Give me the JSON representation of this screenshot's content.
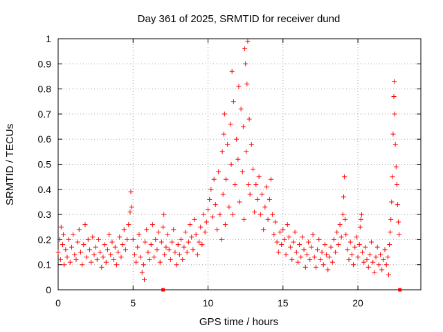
{
  "chart_data": {
    "type": "scatter",
    "title": "Day 361 of 2025, SRMTID for receiver dund",
    "xlabel": "GPS time / hours",
    "ylabel": "SRMTID / TECUs",
    "xlim": [
      0,
      24.2
    ],
    "ylim": [
      0,
      1
    ],
    "xticks": [
      0,
      5,
      10,
      15,
      20
    ],
    "yticks": [
      0,
      0.1,
      0.2,
      0.3,
      0.4,
      0.5,
      0.6,
      0.7,
      0.8,
      0.9,
      1
    ],
    "xtick_labels": [
      "0",
      "5",
      "10",
      "15",
      "20"
    ],
    "ytick_labels": [
      "0",
      "0.1",
      "0.2",
      "0.3",
      "0.4",
      "0.5",
      "0.6",
      "0.7",
      "0.8",
      "0.9",
      "1"
    ],
    "grid": true,
    "marker": "+",
    "color": "#ff0000",
    "series": [
      {
        "name": "SRMTID",
        "points": [
          [
            0.0,
            0.15
          ],
          [
            0.1,
            0.2
          ],
          [
            0.15,
            0.12
          ],
          [
            0.2,
            0.25
          ],
          [
            0.3,
            0.18
          ],
          [
            0.35,
            0.22
          ],
          [
            0.4,
            0.1
          ],
          [
            0.5,
            0.16
          ],
          [
            0.6,
            0.13
          ],
          [
            0.7,
            0.2
          ],
          [
            0.8,
            0.11
          ],
          [
            0.9,
            0.17
          ],
          [
            1.0,
            0.22
          ],
          [
            1.1,
            0.14
          ],
          [
            1.2,
            0.12
          ],
          [
            1.3,
            0.19
          ],
          [
            1.4,
            0.24
          ],
          [
            1.5,
            0.15
          ],
          [
            1.6,
            0.1
          ],
          [
            1.7,
            0.18
          ],
          [
            1.8,
            0.26
          ],
          [
            1.9,
            0.13
          ],
          [
            2.0,
            0.2
          ],
          [
            2.1,
            0.16
          ],
          [
            2.2,
            0.11
          ],
          [
            2.3,
            0.21
          ],
          [
            2.4,
            0.14
          ],
          [
            2.5,
            0.17
          ],
          [
            2.6,
            0.12
          ],
          [
            2.7,
            0.2
          ],
          [
            2.8,
            0.15
          ],
          [
            2.9,
            0.09
          ],
          [
            3.0,
            0.13
          ],
          [
            3.1,
            0.18
          ],
          [
            3.2,
            0.11
          ],
          [
            3.3,
            0.16
          ],
          [
            3.4,
            0.22
          ],
          [
            3.5,
            0.14
          ],
          [
            3.6,
            0.19
          ],
          [
            3.7,
            0.12
          ],
          [
            3.8,
            0.17
          ],
          [
            3.9,
            0.1
          ],
          [
            4.0,
            0.15
          ],
          [
            4.1,
            0.21
          ],
          [
            4.2,
            0.13
          ],
          [
            4.3,
            0.18
          ],
          [
            4.4,
            0.24
          ],
          [
            4.5,
            0.16
          ],
          [
            4.6,
            0.2
          ],
          [
            4.7,
            0.26
          ],
          [
            4.8,
            0.31
          ],
          [
            4.85,
            0.39
          ],
          [
            4.9,
            0.33
          ],
          [
            5.0,
            0.2
          ],
          [
            5.1,
            0.14
          ],
          [
            5.2,
            0.11
          ],
          [
            5.3,
            0.17
          ],
          [
            5.4,
            0.22
          ],
          [
            5.5,
            0.13
          ],
          [
            5.6,
            0.07
          ],
          [
            5.7,
            0.1
          ],
          [
            5.75,
            0.04
          ],
          [
            5.8,
            0.19
          ],
          [
            5.9,
            0.24
          ],
          [
            6.0,
            0.15
          ],
          [
            6.1,
            0.12
          ],
          [
            6.2,
            0.18
          ],
          [
            6.3,
            0.26
          ],
          [
            6.4,
            0.13
          ],
          [
            6.5,
            0.2
          ],
          [
            6.6,
            0.16
          ],
          [
            6.7,
            0.23
          ],
          [
            6.8,
            0.11
          ],
          [
            6.9,
            0.19
          ],
          [
            7.0,
            0.25
          ],
          [
            7.05,
            0.3
          ],
          [
            7.1,
            0.14
          ],
          [
            7.2,
            0.17
          ],
          [
            7.3,
            0.22
          ],
          [
            7.4,
            0.16
          ],
          [
            7.5,
            0.12
          ],
          [
            7.6,
            0.19
          ],
          [
            7.7,
            0.24
          ],
          [
            7.8,
            0.15
          ],
          [
            7.9,
            0.1
          ],
          [
            8.0,
            0.18
          ],
          [
            8.1,
            0.14
          ],
          [
            8.2,
            0.2
          ],
          [
            8.3,
            0.12
          ],
          [
            8.4,
            0.17
          ],
          [
            8.5,
            0.23
          ],
          [
            8.6,
            0.15
          ],
          [
            8.7,
            0.19
          ],
          [
            8.8,
            0.26
          ],
          [
            8.9,
            0.21
          ],
          [
            9.0,
            0.16
          ],
          [
            9.1,
            0.28
          ],
          [
            9.2,
            0.22
          ],
          [
            9.3,
            0.14
          ],
          [
            9.4,
            0.19
          ],
          [
            9.5,
            0.25
          ],
          [
            9.6,
            0.18
          ],
          [
            9.7,
            0.3
          ],
          [
            9.8,
            0.23
          ],
          [
            9.9,
            0.27
          ],
          [
            10.0,
            0.32
          ],
          [
            10.1,
            0.36
          ],
          [
            10.2,
            0.4
          ],
          [
            10.3,
            0.29
          ],
          [
            10.4,
            0.44
          ],
          [
            10.5,
            0.34
          ],
          [
            10.6,
            0.24
          ],
          [
            10.7,
            0.47
          ],
          [
            10.8,
            0.3
          ],
          [
            10.9,
            0.2
          ],
          [
            10.95,
            0.55
          ],
          [
            11.0,
            0.38
          ],
          [
            11.05,
            0.62
          ],
          [
            11.1,
            0.7
          ],
          [
            11.15,
            0.26
          ],
          [
            11.2,
            0.44
          ],
          [
            11.3,
            0.58
          ],
          [
            11.4,
            0.33
          ],
          [
            11.5,
            0.66
          ],
          [
            11.55,
            0.5
          ],
          [
            11.6,
            0.87
          ],
          [
            11.65,
            0.3
          ],
          [
            11.7,
            0.75
          ],
          [
            11.8,
            0.42
          ],
          [
            11.9,
            0.6
          ],
          [
            12.0,
            0.52
          ],
          [
            12.05,
            0.81
          ],
          [
            12.1,
            0.35
          ],
          [
            12.2,
            0.72
          ],
          [
            12.3,
            0.47
          ],
          [
            12.35,
            0.65
          ],
          [
            12.4,
            0.28
          ],
          [
            12.45,
            0.96
          ],
          [
            12.5,
            0.9
          ],
          [
            12.55,
            0.55
          ],
          [
            12.6,
            0.82
          ],
          [
            12.65,
            0.99
          ],
          [
            12.7,
            0.42
          ],
          [
            12.75,
            0.68
          ],
          [
            12.8,
            0.38
          ],
          [
            12.9,
            0.58
          ],
          [
            13.0,
            0.48
          ],
          [
            13.1,
            0.31
          ],
          [
            13.2,
            0.42
          ],
          [
            13.3,
            0.36
          ],
          [
            13.4,
            0.45
          ],
          [
            13.5,
            0.3
          ],
          [
            13.6,
            0.38
          ],
          [
            13.7,
            0.24
          ],
          [
            13.8,
            0.33
          ],
          [
            13.9,
            0.41
          ],
          [
            14.0,
            0.28
          ],
          [
            14.1,
            0.36
          ],
          [
            14.2,
            0.44
          ],
          [
            14.3,
            0.3
          ],
          [
            14.4,
            0.22
          ],
          [
            14.5,
            0.27
          ],
          [
            14.6,
            0.19
          ],
          [
            14.7,
            0.15
          ],
          [
            14.8,
            0.23
          ],
          [
            14.9,
            0.18
          ],
          [
            15.0,
            0.24
          ],
          [
            15.1,
            0.2
          ],
          [
            15.2,
            0.14
          ],
          [
            15.3,
            0.26
          ],
          [
            15.4,
            0.21
          ],
          [
            15.5,
            0.17
          ],
          [
            15.6,
            0.12
          ],
          [
            15.7,
            0.19
          ],
          [
            15.8,
            0.23
          ],
          [
            15.9,
            0.15
          ],
          [
            16.0,
            0.11
          ],
          [
            16.1,
            0.18
          ],
          [
            16.2,
            0.13
          ],
          [
            16.3,
            0.21
          ],
          [
            16.4,
            0.16
          ],
          [
            16.5,
            0.09
          ],
          [
            16.6,
            0.14
          ],
          [
            16.7,
            0.19
          ],
          [
            16.8,
            0.12
          ],
          [
            16.9,
            0.17
          ],
          [
            17.0,
            0.22
          ],
          [
            17.1,
            0.13
          ],
          [
            17.2,
            0.09
          ],
          [
            17.3,
            0.16
          ],
          [
            17.4,
            0.2
          ],
          [
            17.5,
            0.12
          ],
          [
            17.6,
            0.15
          ],
          [
            17.7,
            0.1
          ],
          [
            17.8,
            0.18
          ],
          [
            17.9,
            0.14
          ],
          [
            18.0,
            0.08
          ],
          [
            18.1,
            0.13
          ],
          [
            18.2,
            0.17
          ],
          [
            18.3,
            0.11
          ],
          [
            18.4,
            0.2
          ],
          [
            18.5,
            0.15
          ],
          [
            18.6,
            0.23
          ],
          [
            18.7,
            0.18
          ],
          [
            18.8,
            0.26
          ],
          [
            18.9,
            0.21
          ],
          [
            19.0,
            0.3
          ],
          [
            19.05,
            0.37
          ],
          [
            19.1,
            0.45
          ],
          [
            19.15,
            0.28
          ],
          [
            19.2,
            0.22
          ],
          [
            19.3,
            0.16
          ],
          [
            19.4,
            0.12
          ],
          [
            19.5,
            0.19
          ],
          [
            19.6,
            0.14
          ],
          [
            19.7,
            0.1
          ],
          [
            19.8,
            0.17
          ],
          [
            19.9,
            0.21
          ],
          [
            20.0,
            0.13
          ],
          [
            20.1,
            0.18
          ],
          [
            20.15,
            0.25
          ],
          [
            20.2,
            0.28
          ],
          [
            20.25,
            0.3
          ],
          [
            20.3,
            0.15
          ],
          [
            20.4,
            0.11
          ],
          [
            20.5,
            0.17
          ],
          [
            20.6,
            0.12
          ],
          [
            20.7,
            0.09
          ],
          [
            20.8,
            0.14
          ],
          [
            20.9,
            0.19
          ],
          [
            21.0,
            0.11
          ],
          [
            21.1,
            0.07
          ],
          [
            21.2,
            0.13
          ],
          [
            21.3,
            0.17
          ],
          [
            21.4,
            0.1
          ],
          [
            21.5,
            0.14
          ],
          [
            21.6,
            0.08
          ],
          [
            21.7,
            0.12
          ],
          [
            21.8,
            0.16
          ],
          [
            21.9,
            0.1
          ],
          [
            22.0,
            0.13
          ],
          [
            22.05,
            0.06
          ],
          [
            22.1,
            0.18
          ],
          [
            22.15,
            0.23
          ],
          [
            22.2,
            0.28
          ],
          [
            22.25,
            0.35
          ],
          [
            22.3,
            0.45
          ],
          [
            22.35,
            0.62
          ],
          [
            22.4,
            0.77
          ],
          [
            22.42,
            0.83
          ],
          [
            22.45,
            0.7
          ],
          [
            22.5,
            0.58
          ],
          [
            22.55,
            0.49
          ],
          [
            22.6,
            0.42
          ],
          [
            22.65,
            0.34
          ],
          [
            22.7,
            0.27
          ],
          [
            22.75,
            0.22
          ]
        ]
      }
    ],
    "axis_markers": [
      7.0,
      22.8
    ]
  }
}
